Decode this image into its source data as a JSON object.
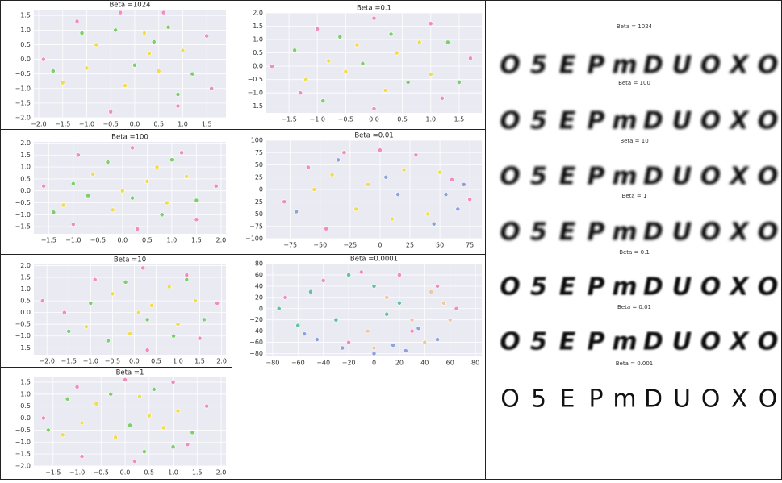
{
  "chart_data": [
    {
      "type": "scatter",
      "title": "Beta =1024",
      "xlim": [
        -2.1,
        1.9
      ],
      "ylim": [
        -2.0,
        1.7
      ],
      "xticks": [
        {
          "value": -2,
          "label": "−2.0"
        },
        {
          "value": -1.5,
          "label": "−1.5"
        },
        {
          "value": -1,
          "label": "−1.0"
        },
        {
          "value": -0.5,
          "label": "−0.5"
        },
        {
          "value": 0,
          "label": "0.0"
        },
        0.5,
        {
          "value": 1,
          "label": "1.0"
        },
        1.5
      ],
      "yticks": [
        {
          "value": -2,
          "label": "−2.0"
        },
        {
          "value": -1.5,
          "label": "−1.5"
        },
        {
          "value": -1,
          "label": "−1.0"
        },
        {
          "value": -0.5,
          "label": "−0.5"
        },
        {
          "value": 0,
          "label": "0.0"
        },
        0.5,
        {
          "value": 1,
          "label": "1.0"
        },
        1.5
      ],
      "grid": true,
      "series": [
        {
          "color": "#f28cc0",
          "x": [
            -1.9,
            -1.2,
            -0.3,
            0.6,
            1.5,
            1.6,
            0.9,
            -0.5
          ],
          "values": [
            0.0,
            1.3,
            1.6,
            1.6,
            0.8,
            -1.0,
            -1.6,
            -1.8
          ]
        },
        {
          "color": "#f2dc4c",
          "x": [
            -0.8,
            0.2,
            0.5,
            -0.2,
            1.0,
            -1.5,
            0.3,
            -1.0
          ],
          "values": [
            0.5,
            0.9,
            -0.4,
            -0.9,
            0.3,
            -0.8,
            0.2,
            -0.3
          ]
        },
        {
          "color": "#7ccf6a",
          "x": [
            -0.4,
            0.7,
            1.2,
            -1.1,
            0.0,
            0.9,
            -1.7,
            0.4
          ],
          "values": [
            1.0,
            1.1,
            -0.5,
            0.9,
            -0.2,
            -1.2,
            -0.4,
            0.6
          ]
        }
      ]
    },
    {
      "type": "scatter",
      "title": "Beta =0.1",
      "xlim": [
        -1.9,
        1.9
      ],
      "ylim": [
        -1.75,
        2.0
      ],
      "xticks": [
        {
          "value": -1.5,
          "label": "−1.5"
        },
        {
          "value": -1,
          "label": "−1.0"
        },
        {
          "value": -0.5,
          "label": "−0.5"
        },
        {
          "value": 0,
          "label": "0.0"
        },
        0.5,
        {
          "value": 1,
          "label": "1.0"
        },
        1.5
      ],
      "yticks": [
        {
          "value": -1.5,
          "label": "−1.5"
        },
        {
          "value": -1,
          "label": "−1.0"
        },
        {
          "value": -0.5,
          "label": "−0.5"
        },
        {
          "value": 0,
          "label": "0.0"
        },
        0.5,
        {
          "value": 1,
          "label": "1.0"
        },
        1.5,
        {
          "value": 2,
          "label": "2.0"
        }
      ],
      "grid": true,
      "series": [
        {
          "color": "#f28cc0",
          "x": [
            -1.8,
            -1.0,
            0.0,
            1.0,
            1.7,
            1.2,
            0.0,
            -1.3
          ],
          "values": [
            0.0,
            1.4,
            1.8,
            1.6,
            0.3,
            -1.2,
            -1.6,
            -1.0
          ]
        },
        {
          "color": "#f2dc4c",
          "x": [
            -0.8,
            -0.3,
            0.4,
            1.0,
            -1.2,
            0.2,
            0.8,
            -0.5
          ],
          "values": [
            0.2,
            0.8,
            0.5,
            -0.3,
            -0.5,
            -0.9,
            0.9,
            -0.2
          ]
        },
        {
          "color": "#7ccf6a",
          "x": [
            -0.6,
            0.3,
            1.3,
            -1.4,
            0.6,
            -0.2,
            1.5,
            -0.9
          ],
          "values": [
            1.1,
            1.2,
            0.9,
            0.6,
            -0.6,
            0.1,
            -0.6,
            -1.3
          ]
        }
      ]
    },
    {
      "type": "scatter",
      "title": "Beta =100",
      "xlim": [
        -1.8,
        2.1
      ],
      "ylim": [
        -1.8,
        2.05
      ],
      "xticks": [
        {
          "value": -1.5,
          "label": "−1.5"
        },
        {
          "value": -1,
          "label": "−1.0"
        },
        {
          "value": -0.5,
          "label": "−0.5"
        },
        {
          "value": 0,
          "label": "0.0"
        },
        0.5,
        {
          "value": 1,
          "label": "1.0"
        },
        1.5,
        {
          "value": 2,
          "label": "2.0"
        }
      ],
      "yticks": [
        {
          "value": -1.5,
          "label": "−1.5"
        },
        {
          "value": -1,
          "label": "−1.0"
        },
        {
          "value": -0.5,
          "label": "−0.5"
        },
        {
          "value": 0,
          "label": "0.0"
        },
        0.5,
        {
          "value": 1,
          "label": "1.0"
        },
        1.5,
        {
          "value": 2,
          "label": "2.0"
        }
      ],
      "grid": true,
      "series": [
        {
          "color": "#f28cc0",
          "x": [
            -1.6,
            -0.9,
            0.2,
            1.2,
            1.9,
            1.5,
            0.3,
            -1.0
          ],
          "values": [
            0.2,
            1.5,
            1.8,
            1.6,
            0.2,
            -1.2,
            -1.6,
            -1.4
          ]
        },
        {
          "color": "#f2dc4c",
          "x": [
            -0.6,
            0.5,
            0.9,
            -0.2,
            1.3,
            -1.2,
            0.0,
            0.7
          ],
          "values": [
            0.7,
            0.4,
            -0.5,
            -0.8,
            0.6,
            -0.6,
            0.0,
            1.0
          ]
        },
        {
          "color": "#7ccf6a",
          "x": [
            -0.3,
            0.8,
            -1.0,
            1.5,
            0.2,
            -0.7,
            1.0,
            -1.4
          ],
          "values": [
            1.2,
            -1.0,
            0.3,
            -0.4,
            -0.3,
            -0.2,
            1.3,
            -0.9
          ]
        }
      ]
    },
    {
      "type": "scatter",
      "title": "Beta =0.01",
      "xlim": [
        -95,
        85
      ],
      "ylim": [
        -100,
        100
      ],
      "xticks": [
        {
          "value": -75,
          "label": "−75"
        },
        {
          "value": -50,
          "label": "−50"
        },
        {
          "value": -25,
          "label": "−25"
        },
        0,
        25,
        50,
        75
      ],
      "yticks": [
        {
          "value": -100,
          "label": "−100"
        },
        {
          "value": -75,
          "label": "−75"
        },
        {
          "value": -50,
          "label": "−50"
        },
        {
          "value": -25,
          "label": "−25"
        },
        0,
        25,
        50,
        75,
        100
      ],
      "grid": true,
      "series": [
        {
          "color": "#f28cc0",
          "x": [
            -80,
            -60,
            -30,
            0,
            30,
            60,
            75,
            -45
          ],
          "values": [
            -25,
            45,
            75,
            80,
            70,
            20,
            -20,
            -80
          ]
        },
        {
          "color": "#f2dc4c",
          "x": [
            -40,
            -10,
            20,
            50,
            -20,
            10,
            40,
            -55
          ],
          "values": [
            30,
            10,
            40,
            35,
            -40,
            -60,
            -50,
            0
          ]
        },
        {
          "color": "#8da0e0",
          "x": [
            55,
            70,
            65,
            45,
            -70,
            -35,
            15,
            5
          ],
          "values": [
            -10,
            10,
            -40,
            -70,
            -45,
            60,
            -10,
            25
          ]
        }
      ]
    },
    {
      "type": "scatter",
      "title": "Beta =10",
      "xlim": [
        -2.3,
        2.1
      ],
      "ylim": [
        -1.8,
        2.05
      ],
      "xticks": [
        {
          "value": -2,
          "label": "−2.0"
        },
        {
          "value": -1.5,
          "label": "−1.5"
        },
        {
          "value": -1,
          "label": "−1.0"
        },
        {
          "value": -0.5,
          "label": "−0.5"
        },
        {
          "value": 0,
          "label": "0.0"
        },
        0.5,
        {
          "value": 1,
          "label": "1.0"
        },
        1.5,
        {
          "value": 2,
          "label": "2.0"
        }
      ],
      "yticks": [
        {
          "value": -1.5,
          "label": "−1.5"
        },
        {
          "value": -1,
          "label": "−1.0"
        },
        {
          "value": -0.5,
          "label": "−0.5"
        },
        {
          "value": 0,
          "label": "0.0"
        },
        0.5,
        {
          "value": 1,
          "label": "1.0"
        },
        1.5,
        {
          "value": 2,
          "label": "2.0"
        }
      ],
      "grid": true,
      "series": [
        {
          "color": "#f28cc0",
          "x": [
            -1.6,
            -0.9,
            0.2,
            1.2,
            1.9,
            1.5,
            0.3,
            -2.1
          ],
          "values": [
            0.0,
            1.4,
            1.9,
            1.6,
            0.4,
            -1.1,
            -1.6,
            0.5
          ]
        },
        {
          "color": "#f2dc4c",
          "x": [
            -0.5,
            0.4,
            1.0,
            -0.1,
            0.8,
            -1.1,
            0.1,
            1.4
          ],
          "values": [
            0.8,
            0.3,
            -0.5,
            -0.9,
            1.1,
            -0.6,
            0.0,
            0.5
          ]
        },
        {
          "color": "#7ccf6a",
          "x": [
            -0.2,
            0.9,
            -1.0,
            1.6,
            0.3,
            -0.6,
            1.2,
            -1.5
          ],
          "values": [
            1.3,
            -1.0,
            0.4,
            -0.3,
            -0.3,
            -1.2,
            1.4,
            -0.8
          ]
        }
      ]
    },
    {
      "type": "scatter",
      "title": "Beta =0.0001",
      "xlim": [
        -85,
        85
      ],
      "ylim": [
        -85,
        80
      ],
      "xticks": [
        {
          "value": -80,
          "label": "−80"
        },
        {
          "value": -60,
          "label": "−60"
        },
        {
          "value": -40,
          "label": "−40"
        },
        {
          "value": -20,
          "label": "−20"
        },
        0,
        20,
        40,
        60,
        80
      ],
      "yticks": [
        {
          "value": -80,
          "label": "−80"
        },
        {
          "value": -60,
          "label": "−60"
        },
        {
          "value": -40,
          "label": "−40"
        },
        {
          "value": -20,
          "label": "−20"
        },
        0,
        20,
        40,
        60,
        80
      ],
      "grid": true,
      "series": [
        {
          "color": "#f28cc0",
          "x": [
            -70,
            -40,
            -10,
            20,
            50,
            65,
            30,
            -20
          ],
          "values": [
            20,
            50,
            65,
            60,
            40,
            0,
            -40,
            -60
          ]
        },
        {
          "color": "#5fc4a0",
          "x": [
            -75,
            -50,
            -30,
            0,
            20,
            -60,
            -20,
            10
          ],
          "values": [
            0,
            30,
            -20,
            40,
            10,
            -30,
            60,
            -10
          ]
        },
        {
          "color": "#f0c8a0",
          "x": [
            10,
            30,
            45,
            60,
            40,
            0,
            -5,
            55
          ],
          "values": [
            20,
            -20,
            30,
            -20,
            -60,
            -70,
            -40,
            10
          ]
        },
        {
          "color": "#8da0e0",
          "x": [
            -45,
            -25,
            0,
            25,
            50,
            -55,
            15,
            35
          ],
          "values": [
            -55,
            -70,
            -80,
            -75,
            -55,
            -45,
            -65,
            -35
          ]
        }
      ]
    },
    {
      "type": "scatter",
      "title": "Beta =1",
      "xlim": [
        -1.9,
        2.1
      ],
      "ylim": [
        -2.0,
        1.7
      ],
      "xticks": [
        {
          "value": -1.5,
          "label": "−1.5"
        },
        {
          "value": -1,
          "label": "−1.0"
        },
        {
          "value": -0.5,
          "label": "−0.5"
        },
        {
          "value": 0,
          "label": "0.0"
        },
        0.5,
        {
          "value": 1,
          "label": "1.0"
        },
        1.5,
        {
          "value": 2,
          "label": "2.0"
        }
      ],
      "yticks": [
        {
          "value": -2,
          "label": "−2.0"
        },
        {
          "value": -1.5,
          "label": "−1.5"
        },
        {
          "value": -1,
          "label": "−1.0"
        },
        {
          "value": -0.5,
          "label": "−0.5"
        },
        {
          "value": 0,
          "label": "0.0"
        },
        0.5,
        {
          "value": 1,
          "label": "1.0"
        },
        1.5
      ],
      "grid": true,
      "series": [
        {
          "color": "#f28cc0",
          "x": [
            -1.7,
            -1.0,
            0.0,
            1.0,
            1.7,
            1.3,
            0.2,
            -0.9
          ],
          "values": [
            0.0,
            1.3,
            1.6,
            1.5,
            0.5,
            -1.1,
            -1.8,
            -1.6
          ]
        },
        {
          "color": "#f2dc4c",
          "x": [
            -0.6,
            0.3,
            0.8,
            -0.2,
            1.1,
            -1.3,
            0.5,
            -0.9
          ],
          "values": [
            0.6,
            0.9,
            -0.4,
            -0.8,
            0.3,
            -0.7,
            0.1,
            -0.2
          ]
        },
        {
          "color": "#7ccf6a",
          "x": [
            -0.3,
            0.6,
            1.4,
            -1.2,
            0.1,
            1.0,
            -1.6,
            0.4
          ],
          "values": [
            1.0,
            1.2,
            -0.6,
            0.8,
            -0.3,
            -1.2,
            -0.5,
            -1.4
          ]
        }
      ]
    }
  ],
  "reconstructions": {
    "rows": [
      {
        "label": "Beta = 1024",
        "glyphs": [
          "O",
          "5",
          "E",
          "P",
          "m",
          "D",
          "U",
          "O",
          "X",
          "O"
        ]
      },
      {
        "label": "Beta = 100",
        "glyphs": [
          "O",
          "5",
          "E",
          "P",
          "m",
          "D",
          "U",
          "O",
          "X",
          "O"
        ]
      },
      {
        "label": "Beta = 10",
        "glyphs": [
          "O",
          "5",
          "E",
          "P",
          "m",
          "D",
          "U",
          "O",
          "X",
          "O"
        ]
      },
      {
        "label": "Beta = 1",
        "glyphs": [
          "O",
          "5",
          "E",
          "P",
          "m",
          "D",
          "U",
          "O",
          "X",
          "O"
        ]
      },
      {
        "label": "Beta = 0.1",
        "glyphs": [
          "O",
          "5",
          "E",
          "P",
          "m",
          "D",
          "U",
          "O",
          "X",
          "O"
        ]
      },
      {
        "label": "Beta = 0.01",
        "glyphs": [
          "O",
          "5",
          "E",
          "P",
          "m",
          "D",
          "U",
          "O",
          "X",
          "O"
        ]
      },
      {
        "label": "Beta = 0.001",
        "glyphs": [
          "O",
          "5",
          "E",
          "P",
          "m",
          "D",
          "U",
          "O",
          "X",
          "O"
        ]
      }
    ]
  }
}
